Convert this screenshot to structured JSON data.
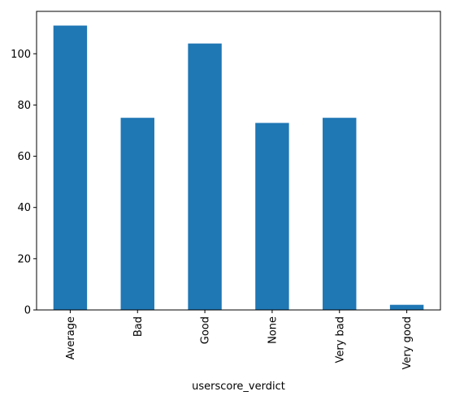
{
  "chart_data": {
    "type": "bar",
    "categories": [
      "Average",
      "Bad",
      "Good",
      "None",
      "Very bad",
      "Very good"
    ],
    "values": [
      111,
      75,
      104,
      73,
      75,
      2
    ],
    "title": "",
    "xlabel": "userscore_verdict",
    "ylabel": "",
    "ylim": [
      0,
      116.55
    ],
    "yticks": [
      0,
      20,
      40,
      60,
      80,
      100
    ],
    "ytick_labels": [
      "0",
      "20",
      "40",
      "60",
      "80",
      "100"
    ],
    "grid": false,
    "legend": "none",
    "bar_color": "#1f77b4",
    "axis_color": "#000000"
  }
}
